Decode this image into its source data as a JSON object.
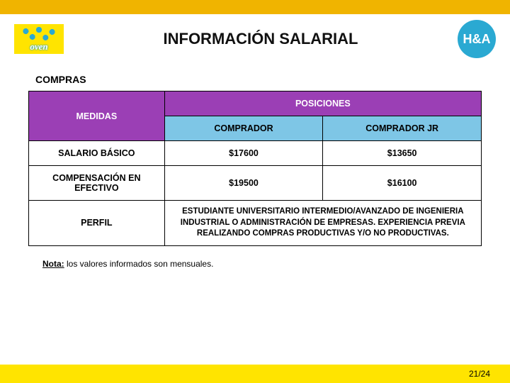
{
  "colors": {
    "topbar": "#f0b400",
    "footer": "#ffe400",
    "logoRightBg": "#2aa9d2",
    "purple": "#9b3fb5",
    "blue": "#7ec6e6"
  },
  "header": {
    "logoLeftText": "oven",
    "title": "INFORMACIÓN SALARIAL",
    "logoRightText": "H&A"
  },
  "section": "COMPRAS",
  "table": {
    "medidasLabel": "MEDIDAS",
    "posicionesLabel": "POSICIONES",
    "positions": [
      "COMPRADOR",
      "COMPRADOR JR"
    ],
    "rows": [
      {
        "label": "SALARIO BÁSICO",
        "values": [
          "$17600",
          "$13650"
        ]
      },
      {
        "label": "COMPENSACIÓN EN EFECTIVO",
        "values": [
          "$19500",
          "$16100"
        ]
      }
    ],
    "perfilLabel": "PERFIL",
    "perfilText": "ESTUDIANTE UNIVERSITARIO INTERMEDIO/AVANZADO DE INGENIERIA INDUSTRIAL O ADMINISTRACIÓN DE EMPRESAS. EXPERIENCIA PREVIA REALIZANDO COMPRAS PRODUCTIVAS Y/O NO PRODUCTIVAS."
  },
  "note": {
    "label": "Nota:",
    "text": " los valores informados son mensuales."
  },
  "footer": {
    "page": "21/24"
  }
}
